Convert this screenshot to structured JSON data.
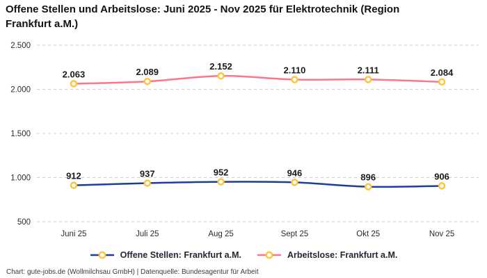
{
  "title": "Offene Stellen und Arbeitslose: Juni 2025 - Nov 2025 für Elektrotechnik (Region Frankfurt a.M.)",
  "footer": "Chart: gute-jobs.de (Wollmilchsau GmbH) | Datenquelle: Bundesagentur für Arbeit",
  "chart_data": {
    "type": "line",
    "categories": [
      "Juni 25",
      "Juli 25",
      "Aug 25",
      "Sept 25",
      "Okt 25",
      "Nov 25"
    ],
    "series": [
      {
        "name": "Offene Stellen: Frankfurt a.M.",
        "color": "#1e3d96",
        "values": [
          912,
          937,
          952,
          946,
          896,
          906
        ],
        "labels": [
          "912",
          "937",
          "952",
          "946",
          "896",
          "906"
        ]
      },
      {
        "name": "Arbeitslose: Frankfurt a.M.",
        "color": "#f8768e",
        "values": [
          2063,
          2089,
          2152,
          2110,
          2111,
          2084
        ],
        "labels": [
          "2.063",
          "2.089",
          "2.152",
          "2.110",
          "2.111",
          "2.084"
        ]
      }
    ],
    "y_ticks": [
      500,
      1000,
      1500,
      2000,
      2500
    ],
    "y_tick_labels": [
      "500",
      "1.000",
      "1.500",
      "2.000",
      "2.500"
    ],
    "ylim": [
      500,
      2500
    ],
    "grid": true,
    "legend_position": "bottom",
    "marker_color": "#fdc43f",
    "marker_fill": "#ffffff",
    "grid_color": "#cccccc",
    "label_color": "#1a1a1a",
    "tick_color": "#2b2b2b"
  }
}
